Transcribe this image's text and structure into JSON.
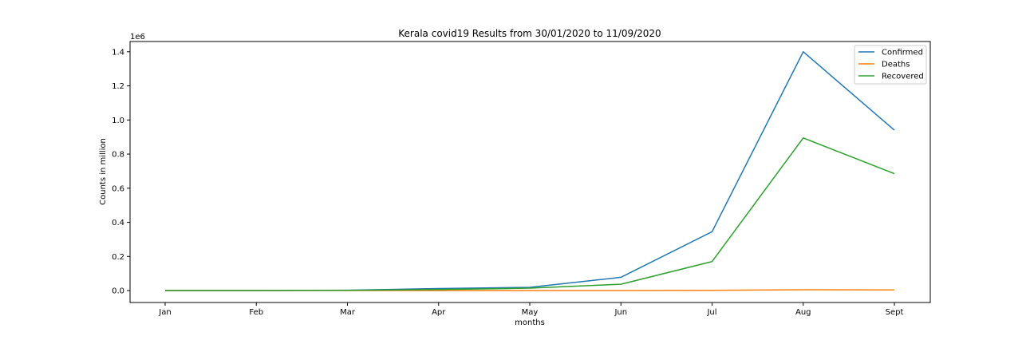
{
  "chart_data": {
    "type": "line",
    "title": "Kerala covid19 Results from 30/01/2020 to 11/09/2020",
    "xlabel": "months",
    "ylabel": "Counts in million",
    "y_offset_text": "1e6",
    "categories": [
      "Jan",
      "Feb",
      "Mar",
      "Apr",
      "May",
      "Jun",
      "Jul",
      "Aug",
      "Sept"
    ],
    "y_ticks": [
      0.0,
      0.2,
      0.4,
      0.6,
      0.8,
      1.0,
      1.2,
      1.4
    ],
    "y_tick_labels": [
      "0.0",
      "0.2",
      "0.4",
      "0.6",
      "0.8",
      "1.0",
      "1.2",
      "1.4"
    ],
    "ylim": [
      -0.07,
      1.46
    ],
    "grid": false,
    "legend_position": "top-right",
    "series": [
      {
        "name": "Confirmed",
        "color": "#1f77b4",
        "values": [
          0.0,
          0.0,
          0.002,
          0.012,
          0.019,
          0.078,
          0.345,
          1.4,
          0.94
        ]
      },
      {
        "name": "Deaths",
        "color": "#ff7f0e",
        "values": [
          0.0,
          0.0,
          0.0,
          0.0,
          0.0,
          0.0,
          0.001,
          0.005,
          0.004
        ]
      },
      {
        "name": "Recovered",
        "color": "#2ca02c",
        "values": [
          0.0,
          0.0,
          0.001,
          0.006,
          0.014,
          0.037,
          0.17,
          0.895,
          0.685
        ]
      }
    ]
  }
}
